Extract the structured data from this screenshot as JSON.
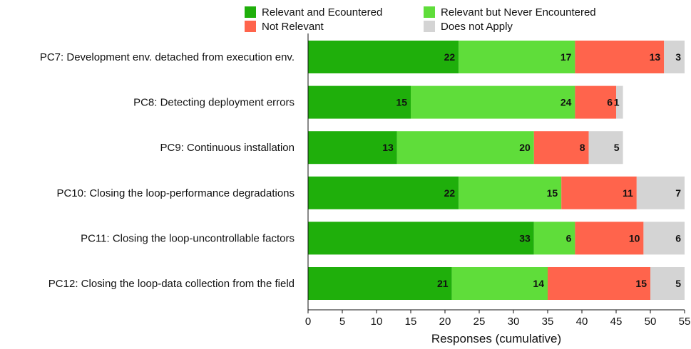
{
  "chart_data": {
    "type": "bar",
    "orientation": "horizontal",
    "stacked": true,
    "categories": [
      "PC7: Development env. detached from execution env.",
      "PC8: Detecting deployment errors",
      "PC9: Continuous installation",
      "PC10: Closing the loop-performance degradations",
      "PC11: Closing the loop-uncontrollable factors",
      "PC12: Closing the loop-data collection from the field"
    ],
    "series": [
      {
        "name": "Relevant and Ecountered",
        "color": "#1faf0b",
        "values": [
          22,
          15,
          13,
          22,
          33,
          21
        ]
      },
      {
        "name": "Relevant but Never Encountered",
        "color": "#5fdd3a",
        "values": [
          17,
          24,
          20,
          15,
          6,
          14
        ]
      },
      {
        "name": "Not Relevant",
        "color": "#ff644c",
        "values": [
          13,
          6,
          8,
          11,
          10,
          15
        ]
      },
      {
        "name": "Does not Apply",
        "color": "#d4d4d4",
        "values": [
          3,
          1,
          5,
          7,
          6,
          5
        ]
      }
    ],
    "xlabel": "Responses (cumulative)",
    "ylabel": "",
    "xlim": [
      0,
      55
    ],
    "xticks": [
      0,
      5,
      10,
      15,
      20,
      25,
      30,
      35,
      40,
      45,
      50,
      55
    ],
    "grid": false,
    "legend_position": "top"
  }
}
